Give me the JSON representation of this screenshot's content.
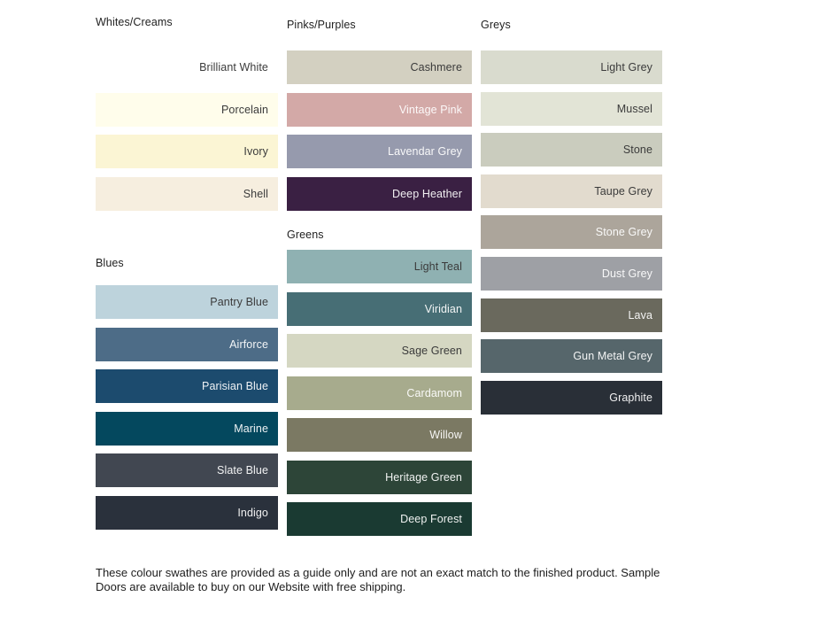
{
  "board": {
    "columns": [
      {
        "id": "whites-creams",
        "title": "Whites/Creams",
        "swatches": [
          {
            "name": "Brilliant White",
            "color": "#ffffff",
            "text_style": "dark"
          },
          {
            "name": "Porcelain",
            "color": "#fffdeb",
            "text_style": "dark"
          },
          {
            "name": "Ivory",
            "color": "#fbf5d4",
            "text_style": "dark"
          },
          {
            "name": "Shell",
            "color": "#f6eedf",
            "text_style": "dark"
          }
        ]
      },
      {
        "id": "blues",
        "title": "Blues",
        "swatches": [
          {
            "name": "Pantry Blue",
            "color": "#bdd3dc",
            "text_style": "dark"
          },
          {
            "name": "Airforce",
            "color": "#4d6c87",
            "text_style": "light"
          },
          {
            "name": "Parisian Blue",
            "color": "#1c4b6e",
            "text_style": "light"
          },
          {
            "name": "Marine",
            "color": "#04485e",
            "text_style": "light"
          },
          {
            "name": "Slate Blue",
            "color": "#414751",
            "text_style": "light"
          },
          {
            "name": "Indigo",
            "color": "#2a313c",
            "text_style": "light"
          }
        ]
      },
      {
        "id": "pinks-purples",
        "title": "Pinks/Purples",
        "swatches": [
          {
            "name": "Cashmere",
            "color": "#d3d0c1",
            "text_style": "dark"
          },
          {
            "name": "Vintage Pink",
            "color": "#d3a9a7",
            "text_style": "light"
          },
          {
            "name": "Lavendar Grey",
            "color": "#969aad",
            "text_style": "light"
          },
          {
            "name": "Deep Heather",
            "color": "#3a2043",
            "text_style": "light"
          }
        ]
      },
      {
        "id": "greens",
        "title": "Greens",
        "swatches": [
          {
            "name": "Light Teal",
            "color": "#8fb1b2",
            "text_style": "dark"
          },
          {
            "name": "Viridian",
            "color": "#476e75",
            "text_style": "light"
          },
          {
            "name": "Sage Green",
            "color": "#d5d7c2",
            "text_style": "dark"
          },
          {
            "name": "Cardamom",
            "color": "#a7ab8d",
            "text_style": "light"
          },
          {
            "name": "Willow",
            "color": "#7b7963",
            "text_style": "light"
          },
          {
            "name": "Heritage Green",
            "color": "#2d4538",
            "text_style": "light"
          },
          {
            "name": "Deep Forest",
            "color": "#1a3a32",
            "text_style": "light"
          }
        ]
      },
      {
        "id": "greys",
        "title": "Greys",
        "swatches": [
          {
            "name": "Light Grey",
            "color": "#d9dbce",
            "text_style": "dark"
          },
          {
            "name": "Mussel",
            "color": "#e2e4d6",
            "text_style": "dark"
          },
          {
            "name": "Stone",
            "color": "#caccbe",
            "text_style": "dark"
          },
          {
            "name": "Taupe Grey",
            "color": "#e2dbce",
            "text_style": "dark"
          },
          {
            "name": "Stone Grey",
            "color": "#aca59b",
            "text_style": "light"
          },
          {
            "name": "Dust Grey",
            "color": "#9ea0a5",
            "text_style": "light"
          },
          {
            "name": "Lava",
            "color": "#6a695d",
            "text_style": "light"
          },
          {
            "name": "Gun Metal Grey",
            "color": "#56666b",
            "text_style": "light"
          },
          {
            "name": "Graphite",
            "color": "#292f37",
            "text_style": "light"
          }
        ]
      }
    ]
  },
  "footer": {
    "line1": "These colour swathes are provided as a guide only and are not an exact match to the finished product.  Sample",
    "line2": "Doors are available to buy on our Website with free shipping."
  }
}
